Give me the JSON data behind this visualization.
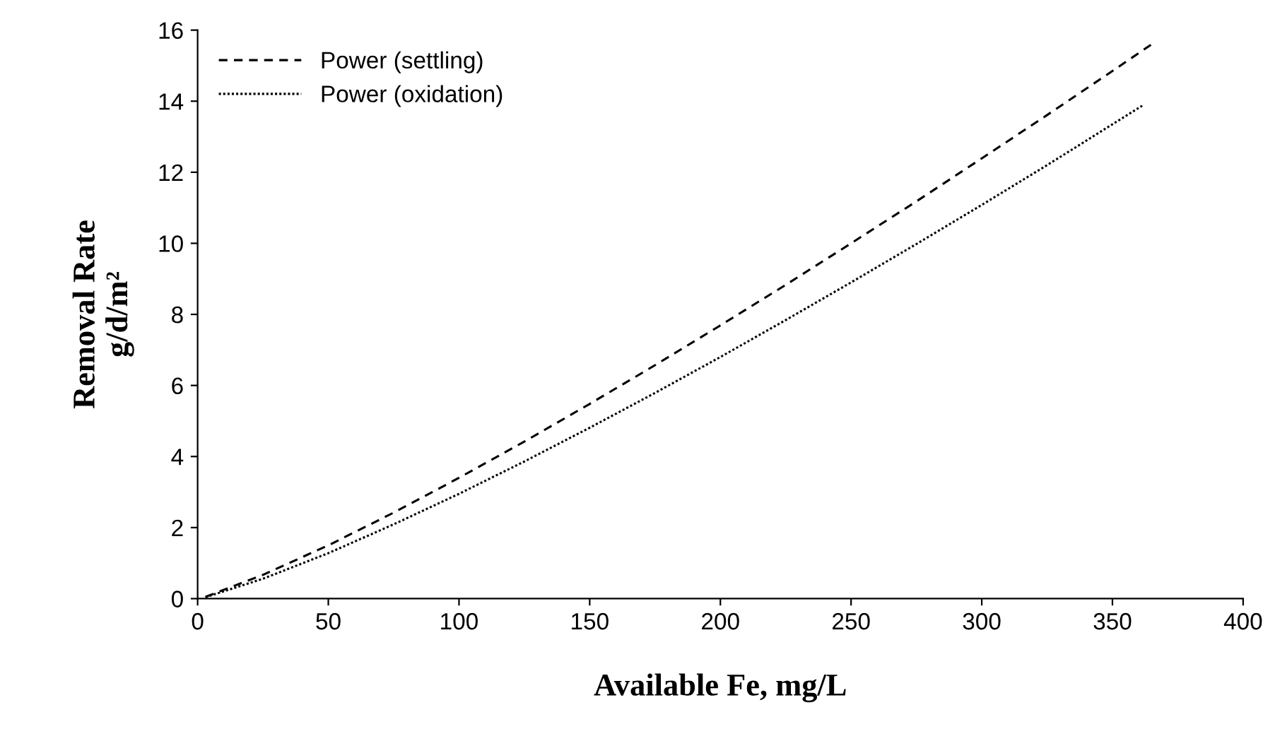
{
  "chart_data": {
    "type": "line",
    "xlabel": "Available Fe, mg/L",
    "ylabel": "Removal Rate\ng/d/m²",
    "xlim": [
      0,
      400
    ],
    "xticks": [
      0,
      50,
      100,
      150,
      200,
      250,
      300,
      350,
      400
    ],
    "ylim": [
      0,
      16
    ],
    "yticks": [
      0,
      2,
      4,
      6,
      8,
      10,
      12,
      14,
      16
    ],
    "grid": false,
    "legend": "top left",
    "marker": "none",
    "series": [
      {
        "name": "Power (settling)",
        "color": "#000000",
        "line_style": "dashed",
        "x": [
          3,
          25,
          50,
          75,
          100,
          125,
          150,
          175,
          200,
          225,
          250,
          275,
          300,
          325,
          350,
          365
        ],
        "values": [
          0.05,
          0.67,
          1.5,
          2.42,
          3.4,
          4.42,
          5.48,
          6.57,
          7.69,
          8.83,
          10.0,
          11.18,
          12.39,
          13.61,
          14.85,
          15.6
        ]
      },
      {
        "name": "Power (oxidation)",
        "color": "#000000",
        "line_style": "dotted",
        "x": [
          3,
          25,
          50,
          75,
          100,
          125,
          150,
          175,
          200,
          225,
          250,
          275,
          300,
          325,
          350,
          362
        ],
        "values": [
          0.04,
          0.56,
          1.28,
          2.09,
          2.95,
          3.86,
          4.81,
          5.79,
          6.8,
          7.84,
          8.9,
          9.98,
          11.08,
          12.2,
          13.35,
          13.9
        ]
      }
    ]
  }
}
